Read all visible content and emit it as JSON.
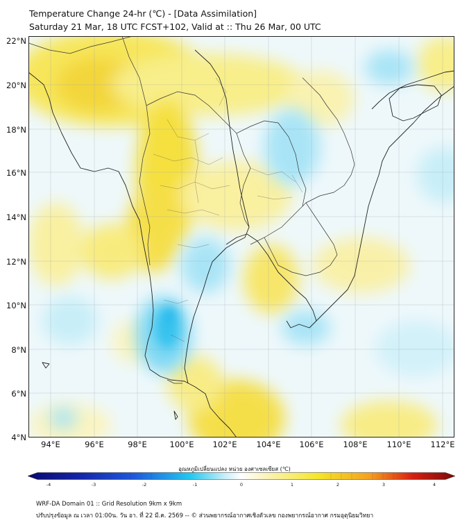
{
  "title": {
    "line1": "Temperature Change 24-hr (℃) - [Data Assimilation]",
    "line2": "Saturday 21 Mar, 18 UTC FCST+102, Valid at :: Thu 26 Mar, 00 UTC"
  },
  "axes": {
    "lat_labels": [
      "22°N",
      "20°N",
      "18°N",
      "16°N",
      "14°N",
      "12°N",
      "10°N",
      "8°N",
      "6°N",
      "4°N"
    ],
    "lon_labels": [
      "94°E",
      "96°E",
      "98°E",
      "100°E",
      "102°E",
      "104°E",
      "106°E",
      "108°E",
      "110°E",
      "112°E"
    ]
  },
  "colorbar": {
    "title": "อุณหภูมิเปลี่ยนแปลง หน่วย องศาเซลเซียส (℃)",
    "ticks": [
      "-4",
      "-3",
      "-2",
      "-1",
      "0",
      "1",
      "2",
      "3",
      "4"
    ],
    "colors": {
      "cold_extreme": "#0a0a6e",
      "cold": "#1e5adc",
      "cool": "#22c8f0",
      "neutral": "#ffffff",
      "warm": "#f5e628",
      "hot": "#f5a020",
      "hot_extreme": "#7a0a0a"
    }
  },
  "footer": {
    "line1": "WRF-DA Domain 01 :: Grid Resolution 9km x 9km",
    "line2": "ปรับปรุงข้อมูล ณ เวลา 01:00น. วัน อา. ที่ 22 มี.ค. 2569 -- © ส่วนพยากรณ์อากาศเชิงตัวเลข กองพยากรณ์อากาศ กรมอุตุนิยมวิทยา"
  }
}
